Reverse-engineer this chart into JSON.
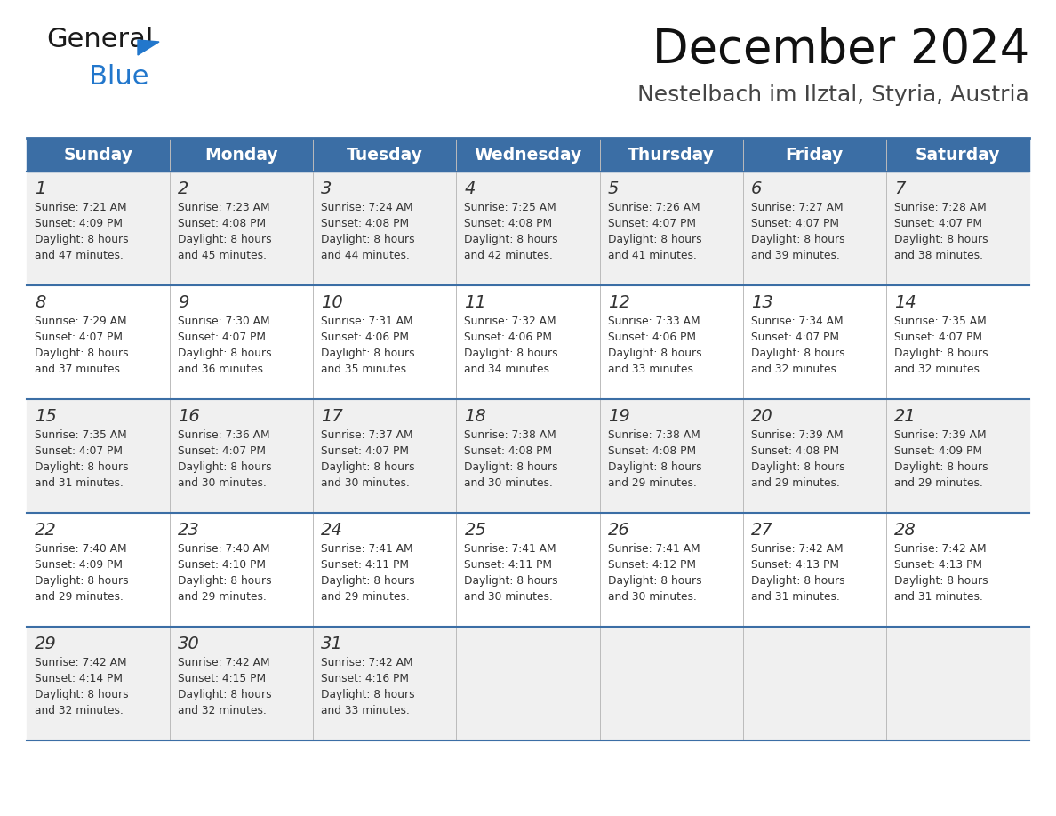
{
  "title": "December 2024",
  "subtitle": "Nestelbach im Ilztal, Styria, Austria",
  "header_bg_color": "#3B6EA5",
  "header_text_color": "#FFFFFF",
  "days_of_week": [
    "Sunday",
    "Monday",
    "Tuesday",
    "Wednesday",
    "Thursday",
    "Friday",
    "Saturday"
  ],
  "cell_bg_even": "#F0F0F0",
  "cell_bg_odd": "#FFFFFF",
  "day_num_color": "#333333",
  "text_color": "#333333",
  "divider_color": "#3B6EA5",
  "background_color": "#FFFFFF",
  "logo_general_color": "#1a1a1a",
  "logo_blue_color": "#2277CC",
  "triangle_color": "#2277CC",
  "calendar_data": [
    [
      {
        "day": 1,
        "sunrise": "7:21 AM",
        "sunset": "4:09 PM",
        "daylight": "8 hours and 47 minutes"
      },
      {
        "day": 2,
        "sunrise": "7:23 AM",
        "sunset": "4:08 PM",
        "daylight": "8 hours and 45 minutes"
      },
      {
        "day": 3,
        "sunrise": "7:24 AM",
        "sunset": "4:08 PM",
        "daylight": "8 hours and 44 minutes"
      },
      {
        "day": 4,
        "sunrise": "7:25 AM",
        "sunset": "4:08 PM",
        "daylight": "8 hours and 42 minutes"
      },
      {
        "day": 5,
        "sunrise": "7:26 AM",
        "sunset": "4:07 PM",
        "daylight": "8 hours and 41 minutes"
      },
      {
        "day": 6,
        "sunrise": "7:27 AM",
        "sunset": "4:07 PM",
        "daylight": "8 hours and 39 minutes"
      },
      {
        "day": 7,
        "sunrise": "7:28 AM",
        "sunset": "4:07 PM",
        "daylight": "8 hours and 38 minutes"
      }
    ],
    [
      {
        "day": 8,
        "sunrise": "7:29 AM",
        "sunset": "4:07 PM",
        "daylight": "8 hours and 37 minutes"
      },
      {
        "day": 9,
        "sunrise": "7:30 AM",
        "sunset": "4:07 PM",
        "daylight": "8 hours and 36 minutes"
      },
      {
        "day": 10,
        "sunrise": "7:31 AM",
        "sunset": "4:06 PM",
        "daylight": "8 hours and 35 minutes"
      },
      {
        "day": 11,
        "sunrise": "7:32 AM",
        "sunset": "4:06 PM",
        "daylight": "8 hours and 34 minutes"
      },
      {
        "day": 12,
        "sunrise": "7:33 AM",
        "sunset": "4:06 PM",
        "daylight": "8 hours and 33 minutes"
      },
      {
        "day": 13,
        "sunrise": "7:34 AM",
        "sunset": "4:07 PM",
        "daylight": "8 hours and 32 minutes"
      },
      {
        "day": 14,
        "sunrise": "7:35 AM",
        "sunset": "4:07 PM",
        "daylight": "8 hours and 32 minutes"
      }
    ],
    [
      {
        "day": 15,
        "sunrise": "7:35 AM",
        "sunset": "4:07 PM",
        "daylight": "8 hours and 31 minutes"
      },
      {
        "day": 16,
        "sunrise": "7:36 AM",
        "sunset": "4:07 PM",
        "daylight": "8 hours and 30 minutes"
      },
      {
        "day": 17,
        "sunrise": "7:37 AM",
        "sunset": "4:07 PM",
        "daylight": "8 hours and 30 minutes"
      },
      {
        "day": 18,
        "sunrise": "7:38 AM",
        "sunset": "4:08 PM",
        "daylight": "8 hours and 30 minutes"
      },
      {
        "day": 19,
        "sunrise": "7:38 AM",
        "sunset": "4:08 PM",
        "daylight": "8 hours and 29 minutes"
      },
      {
        "day": 20,
        "sunrise": "7:39 AM",
        "sunset": "4:08 PM",
        "daylight": "8 hours and 29 minutes"
      },
      {
        "day": 21,
        "sunrise": "7:39 AM",
        "sunset": "4:09 PM",
        "daylight": "8 hours and 29 minutes"
      }
    ],
    [
      {
        "day": 22,
        "sunrise": "7:40 AM",
        "sunset": "4:09 PM",
        "daylight": "8 hours and 29 minutes"
      },
      {
        "day": 23,
        "sunrise": "7:40 AM",
        "sunset": "4:10 PM",
        "daylight": "8 hours and 29 minutes"
      },
      {
        "day": 24,
        "sunrise": "7:41 AM",
        "sunset": "4:11 PM",
        "daylight": "8 hours and 29 minutes"
      },
      {
        "day": 25,
        "sunrise": "7:41 AM",
        "sunset": "4:11 PM",
        "daylight": "8 hours and 30 minutes"
      },
      {
        "day": 26,
        "sunrise": "7:41 AM",
        "sunset": "4:12 PM",
        "daylight": "8 hours and 30 minutes"
      },
      {
        "day": 27,
        "sunrise": "7:42 AM",
        "sunset": "4:13 PM",
        "daylight": "8 hours and 31 minutes"
      },
      {
        "day": 28,
        "sunrise": "7:42 AM",
        "sunset": "4:13 PM",
        "daylight": "8 hours and 31 minutes"
      }
    ],
    [
      {
        "day": 29,
        "sunrise": "7:42 AM",
        "sunset": "4:14 PM",
        "daylight": "8 hours and 32 minutes"
      },
      {
        "day": 30,
        "sunrise": "7:42 AM",
        "sunset": "4:15 PM",
        "daylight": "8 hours and 32 minutes"
      },
      {
        "day": 31,
        "sunrise": "7:42 AM",
        "sunset": "4:16 PM",
        "daylight": "8 hours and 33 minutes"
      },
      null,
      null,
      null,
      null
    ]
  ]
}
